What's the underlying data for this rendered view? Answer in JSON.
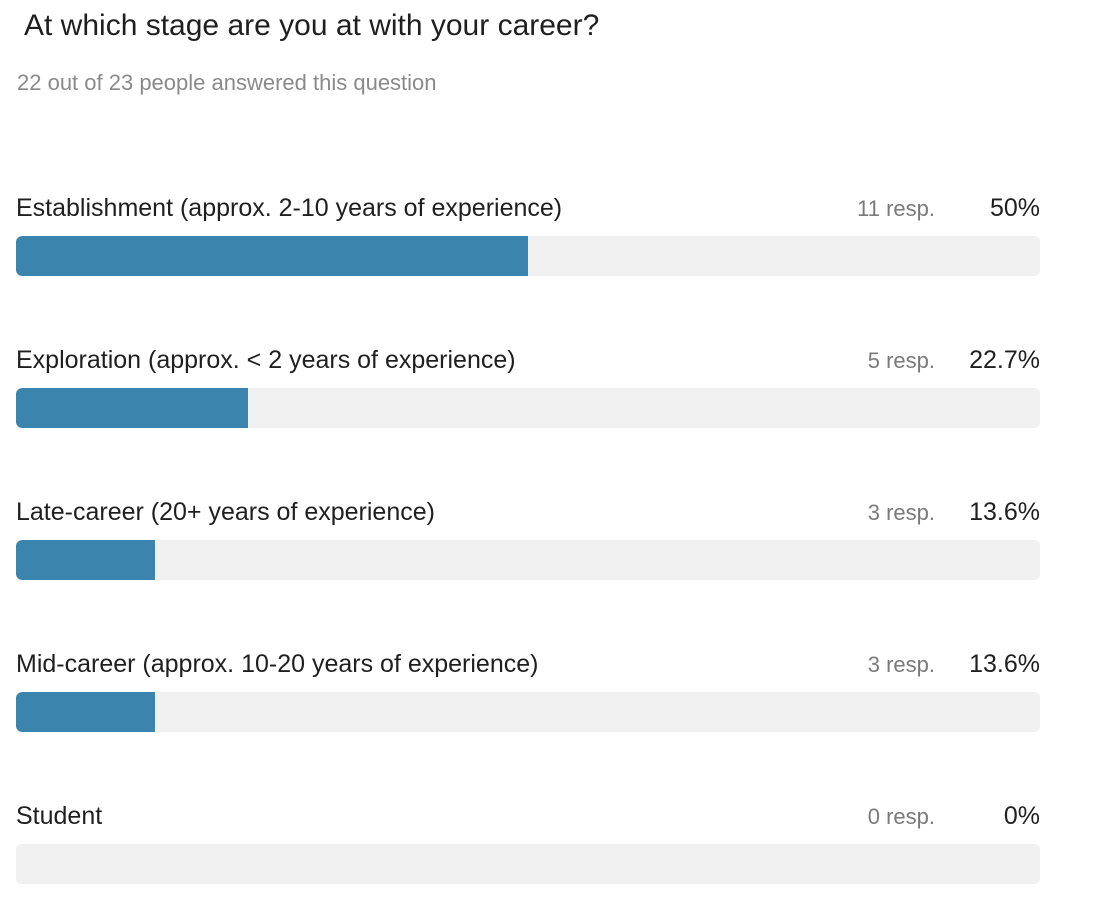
{
  "question": {
    "title": "At which stage are you at with your career?",
    "summary": "22 out of 23 people answered this question"
  },
  "colors": {
    "bar_fill": "#3a84ad",
    "bar_track": "#f0f0f0"
  },
  "chart_data": {
    "type": "bar",
    "orientation": "horizontal",
    "title": "At which stage are you at with your career?",
    "categories": [
      "Establishment (approx. 2-10 years of experience)",
      "Exploration (approx. < 2 years of experience)",
      "Late-career (20+ years of experience)",
      "Mid-career (approx. 10-20 years of experience)",
      "Student"
    ],
    "responses": [
      11,
      5,
      3,
      3,
      0
    ],
    "values": [
      50,
      22.7,
      13.6,
      13.6,
      0
    ],
    "count_labels": [
      "11 resp.",
      "5 resp.",
      "3 resp.",
      "3 resp.",
      "0 resp."
    ],
    "percent_labels": [
      "50%",
      "22.7%",
      "13.6%",
      "13.6%",
      "0%"
    ],
    "xlim": [
      0,
      100
    ],
    "grid": false
  }
}
